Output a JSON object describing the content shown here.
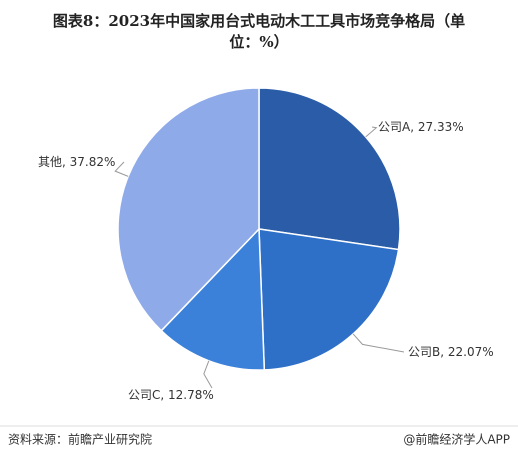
{
  "chart_data": {
    "type": "pie",
    "title_lines": [
      "图表8：2023年中国家用台式电动木工工具市场竞争格局（单",
      "位：%）"
    ],
    "categories": [
      "公司A",
      "公司B",
      "公司C",
      "其他"
    ],
    "values": [
      27.33,
      22.07,
      12.78,
      37.82
    ],
    "value_labels": [
      "27.33%",
      "22.07%",
      "12.78%",
      "37.82%"
    ],
    "colors": [
      "#2a5ca8",
      "#2e6fc8",
      "#3b80d9",
      "#8faae8"
    ],
    "source": "资料来源：前瞻产业研究院",
    "brand": "@前瞻经济学人APP"
  }
}
